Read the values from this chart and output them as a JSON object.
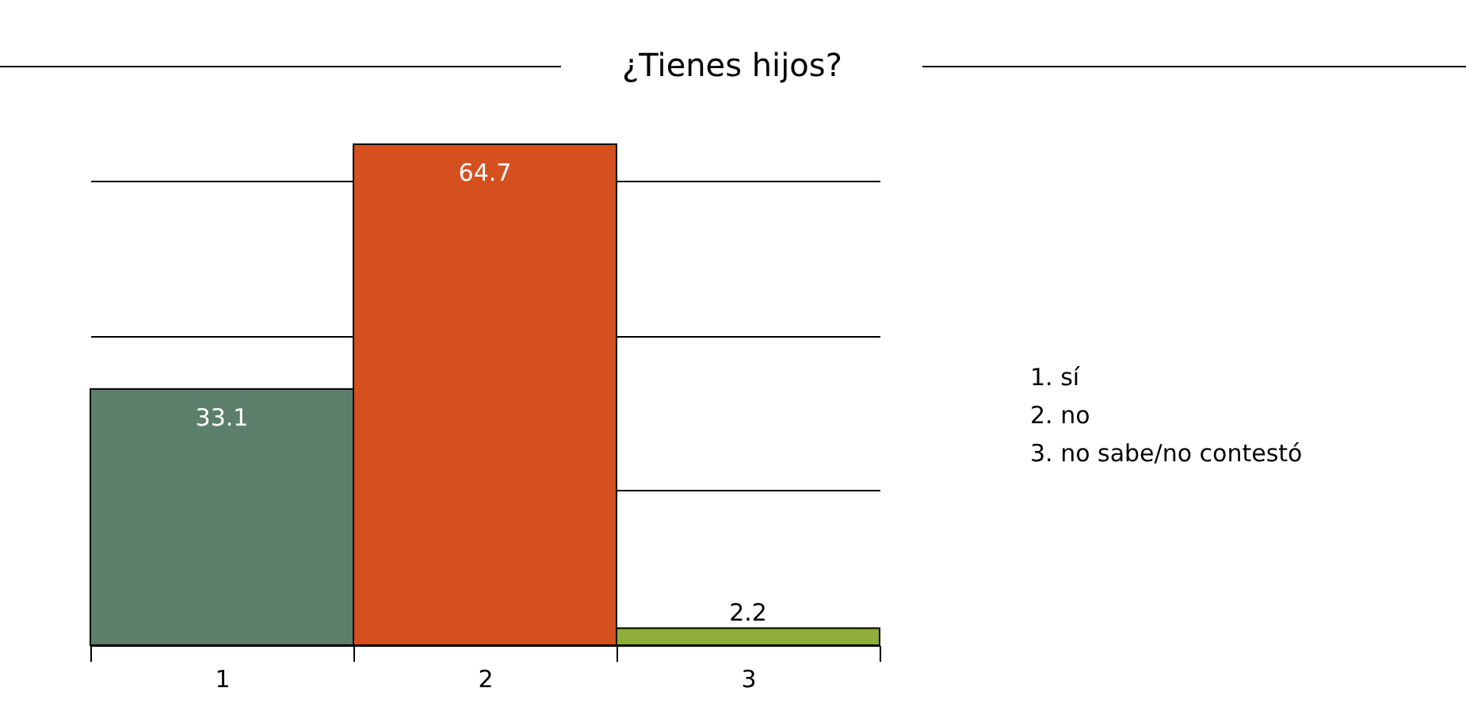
{
  "chart_data": {
    "type": "bar",
    "title": "¿Tienes hijos?",
    "categories": [
      "1",
      "2",
      "3"
    ],
    "values": [
      33.1,
      64.7,
      2.2
    ],
    "colors": [
      "#5b7f6a",
      "#d4501f",
      "#8fae3a"
    ],
    "yticks": [
      {
        "value": 20,
        "label": null
      },
      {
        "value": 40,
        "label": null
      },
      {
        "value": 60,
        "label": null
      }
    ],
    "grid": "y",
    "tick_labels": "x",
    "data_labels": true,
    "annotations": [
      "1.  sí",
      "2.  no",
      "3.  no sabe/no contestó"
    ]
  }
}
